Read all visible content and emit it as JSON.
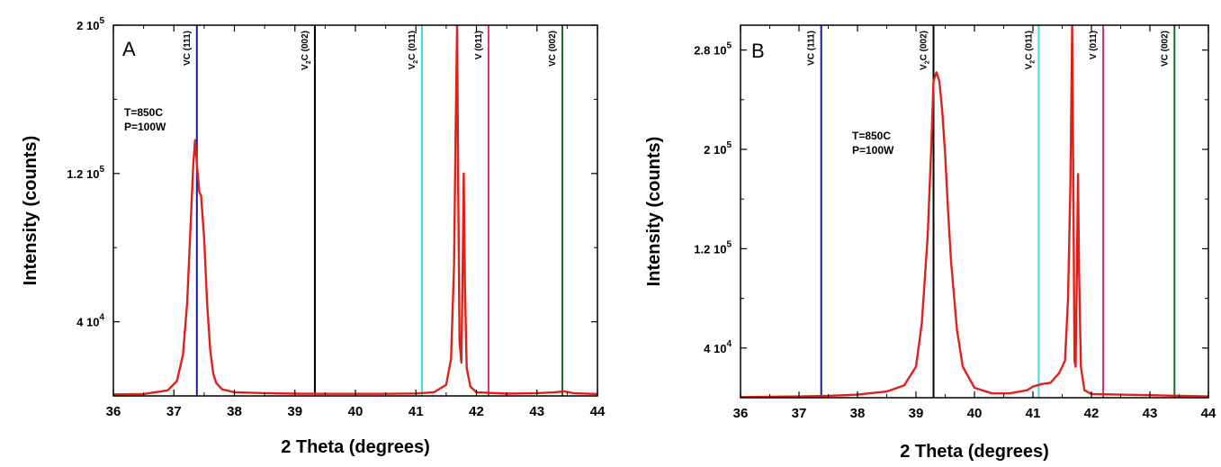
{
  "chart_data": [
    {
      "type": "line",
      "panel_label": "A",
      "annotations": [
        "T=850C",
        "P=100W"
      ],
      "xlabel": "2 Theta (degrees)",
      "ylabel": "Intensity (counts)",
      "xlim": [
        36,
        44
      ],
      "ylim": [
        0,
        200000
      ],
      "x_ticks": [
        36,
        37,
        38,
        39,
        40,
        41,
        42,
        43,
        44
      ],
      "y_ticks": [
        {
          "value": 40000,
          "mantissa": "4 10",
          "exp": "4"
        },
        {
          "value": 120000,
          "mantissa": "1.2 10",
          "exp": "5"
        },
        {
          "value": 200000,
          "mantissa": "2 10",
          "exp": "5"
        }
      ],
      "reference_lines": [
        {
          "x": 37.38,
          "base": "VC",
          "sub": "",
          "post": " (111)",
          "color": "#1a1aa0"
        },
        {
          "x": 39.33,
          "base": "V",
          "sub": "2",
          "post": "C (002)",
          "color": "#000000"
        },
        {
          "x": 41.1,
          "base": "V",
          "sub": "2",
          "post": "C (011)",
          "color": "#44d4f4"
        },
        {
          "x": 42.2,
          "base": "V",
          "sub": "",
          "post": " (011)",
          "color": "#e0307a"
        },
        {
          "x": 43.42,
          "base": "VC",
          "sub": "",
          "post": " (002)",
          "color": "#1e6b2e"
        }
      ],
      "series": [
        {
          "color": "#e0201a",
          "x": [
            36.0,
            36.5,
            36.9,
            37.05,
            37.15,
            37.22,
            37.28,
            37.32,
            37.35,
            37.38,
            37.42,
            37.45,
            37.5,
            37.55,
            37.6,
            37.65,
            37.7,
            37.8,
            38.0,
            38.5,
            39.0,
            39.5,
            40.0,
            40.5,
            41.0,
            41.3,
            41.5,
            41.58,
            41.63,
            41.66,
            41.68,
            41.7,
            41.72,
            41.75,
            41.77,
            41.79,
            41.81,
            41.84,
            41.9,
            42.0,
            42.5,
            43.0,
            43.3,
            43.45,
            43.6,
            44.0
          ],
          "y": [
            800,
            1000,
            3000,
            8000,
            22000,
            50000,
            95000,
            125000,
            138000,
            125000,
            110000,
            108000,
            85000,
            50000,
            25000,
            12000,
            7000,
            3500,
            2000,
            1500,
            1200,
            1100,
            1100,
            1100,
            1300,
            2000,
            6000,
            20000,
            70000,
            150000,
            200000,
            110000,
            30000,
            18000,
            60000,
            120000,
            60000,
            15000,
            5000,
            2000,
            1200,
            1500,
            2000,
            2500,
            1500,
            1000
          ]
        }
      ]
    },
    {
      "type": "line",
      "panel_label": "B",
      "annotations": [
        "T=850C",
        "P=100W"
      ],
      "xlabel": "2 Theta (degrees)",
      "ylabel": "Intensity (counts)",
      "xlim": [
        36,
        44
      ],
      "ylim": [
        0,
        300000
      ],
      "x_ticks": [
        36,
        37,
        38,
        39,
        40,
        41,
        42,
        43,
        44
      ],
      "y_ticks": [
        {
          "value": 40000,
          "mantissa": "4 10",
          "exp": "4"
        },
        {
          "value": 120000,
          "mantissa": "1.2 10",
          "exp": "5"
        },
        {
          "value": 200000,
          "mantissa": "2 10",
          "exp": "5"
        },
        {
          "value": 280000,
          "mantissa": "2.8 10",
          "exp": "5"
        }
      ],
      "reference_lines": [
        {
          "x": 37.38,
          "base": "VC",
          "sub": "",
          "post": " (111)",
          "color": "#1a1aa0"
        },
        {
          "x": 39.3,
          "base": "V",
          "sub": "2",
          "post": "C (002)",
          "color": "#000000"
        },
        {
          "x": 41.1,
          "base": "V",
          "sub": "2",
          "post": "C (011)",
          "color": "#44d4f4"
        },
        {
          "x": 42.2,
          "base": "V",
          "sub": "",
          "post": " (011)",
          "color": "#e0307a"
        },
        {
          "x": 43.42,
          "base": "VC",
          "sub": "",
          "post": " (002)",
          "color": "#1e6b2e"
        }
      ],
      "series": [
        {
          "color": "#e0201a",
          "x": [
            36.0,
            36.5,
            37.0,
            37.5,
            38.0,
            38.5,
            38.8,
            39.0,
            39.1,
            39.2,
            39.26,
            39.3,
            39.35,
            39.4,
            39.45,
            39.5,
            39.55,
            39.6,
            39.7,
            39.8,
            40.0,
            40.3,
            40.6,
            40.9,
            41.0,
            41.15,
            41.3,
            41.45,
            41.55,
            41.6,
            41.64,
            41.67,
            41.69,
            41.71,
            41.73,
            41.75,
            41.77,
            41.79,
            41.82,
            41.88,
            42.0,
            42.5,
            43.0,
            43.5,
            44.0
          ],
          "y": [
            500,
            800,
            1000,
            1500,
            2500,
            5000,
            10000,
            25000,
            60000,
            130000,
            200000,
            255000,
            262000,
            255000,
            230000,
            195000,
            150000,
            110000,
            55000,
            25000,
            8000,
            3500,
            3500,
            6000,
            9000,
            11000,
            12000,
            20000,
            30000,
            80000,
            170000,
            300000,
            180000,
            30000,
            25000,
            100000,
            180000,
            100000,
            25000,
            6000,
            3000,
            2500,
            2000,
            1500,
            1000
          ]
        }
      ]
    }
  ]
}
